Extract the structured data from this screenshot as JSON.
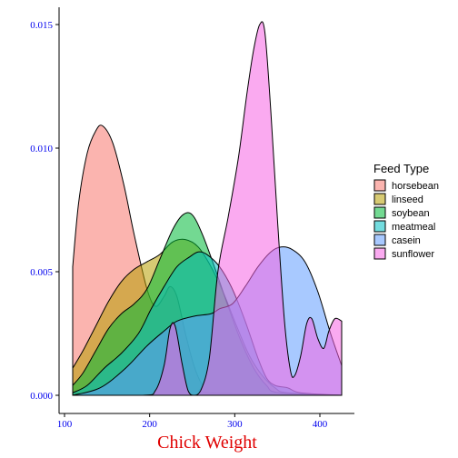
{
  "chart_data": {
    "type": "area",
    "subtype": "density",
    "title": "",
    "xlabel": "Chick Weight",
    "ylabel": "",
    "xlim": [
      108,
      423
    ],
    "ylim": [
      0,
      0.0155
    ],
    "x_ticks": [
      {
        "value": 100,
        "label": "100"
      },
      {
        "value": 200,
        "label": "200"
      },
      {
        "value": 300,
        "label": "300"
      },
      {
        "value": 400,
        "label": "400"
      }
    ],
    "y_ticks": [
      {
        "value": 0.0,
        "label": "0.000"
      },
      {
        "value": 0.005,
        "label": "0.005"
      },
      {
        "value": 0.01,
        "label": "0.010"
      },
      {
        "value": 0.015,
        "label": "0.015"
      }
    ],
    "grid": false,
    "legend": {
      "title": "Feed Type",
      "position": "right"
    },
    "series": [
      {
        "name": "horsebean",
        "color": "#F8766D",
        "points": [
          [
            108,
            0.0052
          ],
          [
            115,
            0.0078
          ],
          [
            125,
            0.0098
          ],
          [
            135,
            0.0107
          ],
          [
            143,
            0.0109
          ],
          [
            155,
            0.0102
          ],
          [
            168,
            0.0085
          ],
          [
            180,
            0.0065
          ],
          [
            195,
            0.0043
          ],
          [
            205,
            0.0036
          ],
          [
            215,
            0.004
          ],
          [
            222,
            0.0044
          ],
          [
            230,
            0.004
          ],
          [
            240,
            0.0025
          ],
          [
            250,
            0.0012
          ],
          [
            260,
            0.0004
          ],
          [
            270,
            0.0001
          ],
          [
            423,
            0.0
          ]
        ]
      },
      {
        "name": "linseed",
        "color": "#B79F00",
        "points": [
          [
            108,
            0.0011
          ],
          [
            120,
            0.0018
          ],
          [
            135,
            0.0028
          ],
          [
            150,
            0.0038
          ],
          [
            165,
            0.0046
          ],
          [
            180,
            0.0051
          ],
          [
            195,
            0.0054
          ],
          [
            210,
            0.0057
          ],
          [
            225,
            0.0062
          ],
          [
            240,
            0.0063
          ],
          [
            255,
            0.006
          ],
          [
            270,
            0.0052
          ],
          [
            285,
            0.0041
          ],
          [
            300,
            0.0028
          ],
          [
            315,
            0.0016
          ],
          [
            330,
            0.0008
          ],
          [
            345,
            0.0003
          ],
          [
            360,
            0.0001
          ],
          [
            423,
            0.0
          ]
        ]
      },
      {
        "name": "soybean",
        "color": "#00BA38",
        "points": [
          [
            108,
            0.0004
          ],
          [
            120,
            0.0009
          ],
          [
            135,
            0.0018
          ],
          [
            150,
            0.0027
          ],
          [
            165,
            0.0033
          ],
          [
            180,
            0.0037
          ],
          [
            195,
            0.0043
          ],
          [
            210,
            0.0055
          ],
          [
            225,
            0.0067
          ],
          [
            237,
            0.0073
          ],
          [
            248,
            0.0073
          ],
          [
            260,
            0.0065
          ],
          [
            275,
            0.0051
          ],
          [
            290,
            0.0036
          ],
          [
            305,
            0.0022
          ],
          [
            320,
            0.0011
          ],
          [
            335,
            0.0004
          ],
          [
            350,
            0.0001
          ],
          [
            423,
            0.0
          ]
        ]
      },
      {
        "name": "meatmeal",
        "color": "#00BFC4",
        "points": [
          [
            108,
            0.0001
          ],
          [
            125,
            0.0004
          ],
          [
            145,
            0.0011
          ],
          [
            165,
            0.0017
          ],
          [
            185,
            0.0025
          ],
          [
            200,
            0.0035
          ],
          [
            215,
            0.0044
          ],
          [
            230,
            0.0052
          ],
          [
            245,
            0.0056
          ],
          [
            255,
            0.0058
          ],
          [
            265,
            0.0057
          ],
          [
            280,
            0.0052
          ],
          [
            295,
            0.0043
          ],
          [
            310,
            0.003
          ],
          [
            325,
            0.0015
          ],
          [
            335,
            0.0007
          ],
          [
            345,
            0.0004
          ],
          [
            360,
            0.0003
          ],
          [
            375,
            0.0001
          ],
          [
            423,
            0.0
          ]
        ]
      },
      {
        "name": "casein",
        "color": "#619CFF",
        "points": [
          [
            108,
            0.0
          ],
          [
            140,
            0.0003
          ],
          [
            170,
            0.0011
          ],
          [
            195,
            0.002
          ],
          [
            215,
            0.0026
          ],
          [
            230,
            0.003
          ],
          [
            250,
            0.0032
          ],
          [
            270,
            0.0033
          ],
          [
            280,
            0.0035
          ],
          [
            295,
            0.0037
          ],
          [
            310,
            0.0044
          ],
          [
            325,
            0.0052
          ],
          [
            340,
            0.0058
          ],
          [
            352,
            0.006
          ],
          [
            365,
            0.0059
          ],
          [
            380,
            0.0054
          ],
          [
            395,
            0.0042
          ],
          [
            410,
            0.0025
          ],
          [
            423,
            0.0012
          ]
        ]
      },
      {
        "name": "sunflower",
        "color": "#F564E3",
        "points": [
          [
            108,
            0.0
          ],
          [
            190,
            0.0
          ],
          [
            205,
            0.0002
          ],
          [
            215,
            0.0012
          ],
          [
            222,
            0.0027
          ],
          [
            228,
            0.0028
          ],
          [
            236,
            0.0013
          ],
          [
            243,
            0.0002
          ],
          [
            250,
            0.0
          ],
          [
            258,
            0.0002
          ],
          [
            268,
            0.0015
          ],
          [
            278,
            0.005
          ],
          [
            290,
            0.0072
          ],
          [
            302,
            0.0096
          ],
          [
            312,
            0.0122
          ],
          [
            320,
            0.014
          ],
          [
            327,
            0.015
          ],
          [
            333,
            0.0147
          ],
          [
            340,
            0.0115
          ],
          [
            348,
            0.007
          ],
          [
            356,
            0.003
          ],
          [
            363,
            0.001
          ],
          [
            368,
            0.0008
          ],
          [
            375,
            0.0016
          ],
          [
            382,
            0.0029
          ],
          [
            388,
            0.0031
          ],
          [
            395,
            0.0023
          ],
          [
            402,
            0.0019
          ],
          [
            408,
            0.0026
          ],
          [
            415,
            0.0031
          ],
          [
            423,
            0.003
          ]
        ]
      }
    ]
  }
}
